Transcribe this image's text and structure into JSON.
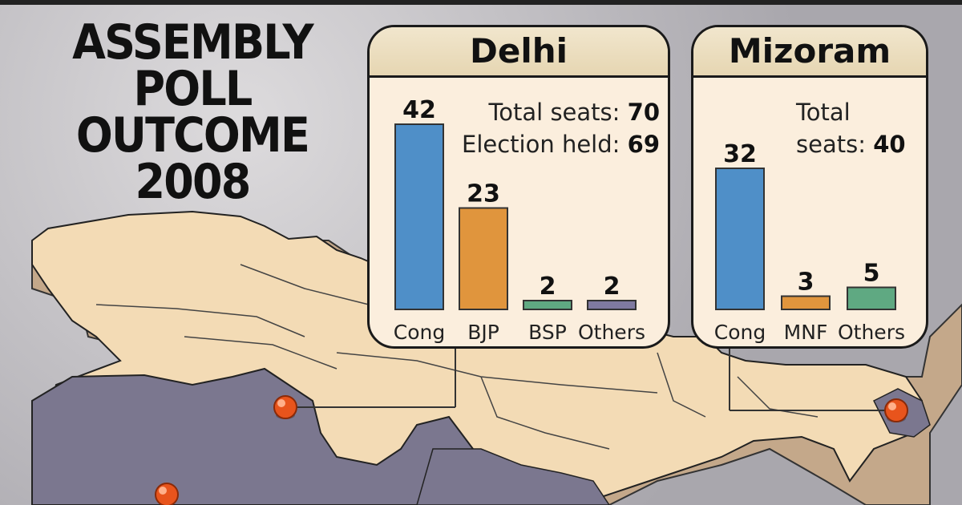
{
  "title_lines": [
    "ASSEMBLY",
    "POLL",
    "OUTCOME",
    "2008"
  ],
  "colors": {
    "cong": "#4f8fc8",
    "bjp": "#e0953d",
    "bsp": "#5fa982",
    "others": "#7f7aa0",
    "mnf": "#e0953d",
    "mizoram_others": "#5fa982"
  },
  "chart_data": [
    {
      "type": "bar",
      "title": "Delhi",
      "categories": [
        "Cong",
        "BJP",
        "BSP",
        "Others"
      ],
      "values": [
        42,
        23,
        2,
        2
      ],
      "info": [
        {
          "label": "Total seats:",
          "value": "70"
        },
        {
          "label": "Election held:",
          "value": "69"
        }
      ]
    },
    {
      "type": "bar",
      "title": "Mizoram",
      "categories": [
        "Cong",
        "MNF",
        "Others"
      ],
      "values": [
        32,
        3,
        5
      ],
      "info": [
        {
          "label": "Total",
          "value": ""
        },
        {
          "label": "seats:",
          "value": "40"
        }
      ]
    }
  ]
}
